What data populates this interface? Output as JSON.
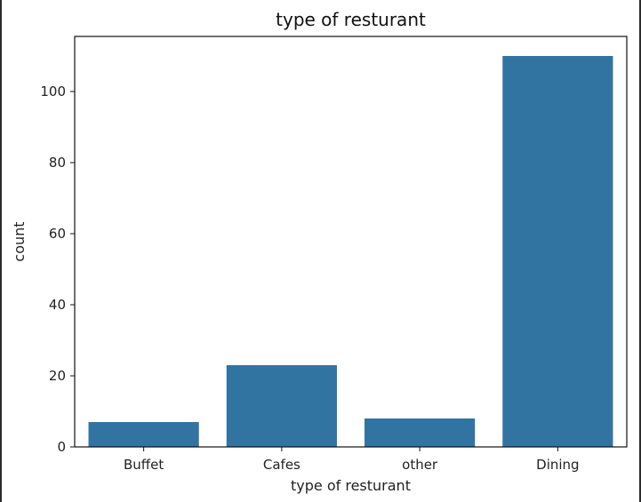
{
  "chart_data": {
    "type": "bar",
    "title": "type of resturant",
    "xlabel": "type of resturant",
    "ylabel": "count",
    "categories": [
      "Buffet",
      "Cafes",
      "other",
      "Dining"
    ],
    "values": [
      7,
      23,
      8,
      110
    ],
    "yticks": [
      0,
      20,
      40,
      60,
      80,
      100
    ],
    "ylim": [
      0,
      115.5
    ],
    "bar_color": "#3274a1",
    "grid": false
  }
}
